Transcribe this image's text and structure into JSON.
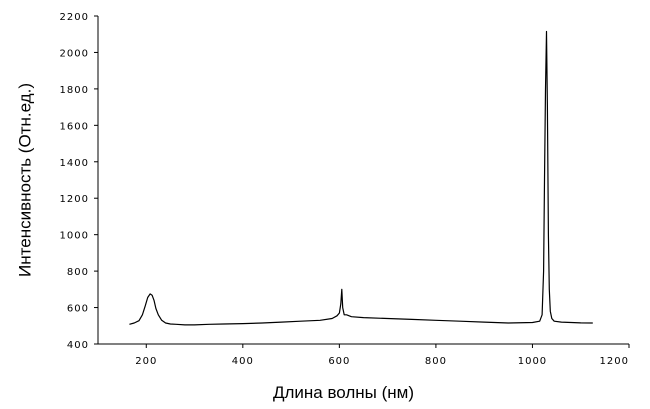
{
  "chart_data": {
    "type": "line",
    "title": "",
    "xlabel": "Длина волны (нм)",
    "ylabel": "Интенсивность (Отн.ед.)",
    "xlim": [
      100,
      1200
    ],
    "ylim": [
      400,
      2200
    ],
    "xticks": [
      200,
      400,
      600,
      800,
      1000,
      1200
    ],
    "xtick_labels": [
      "200",
      "400",
      "600",
      "800",
      "1000",
      "1200"
    ],
    "yticks": [
      400,
      600,
      800,
      1000,
      1200,
      1400,
      1600,
      1800,
      2000,
      2200
    ],
    "ytick_labels": [
      "400",
      "600",
      "800",
      "1000",
      "1200",
      "1400",
      "1600",
      "1800",
      "2000",
      "2200"
    ],
    "grid": false,
    "legend": "none",
    "series": [
      {
        "x": [
          165,
          175,
          185,
          192,
          198,
          203,
          208,
          212,
          216,
          220,
          225,
          232,
          240,
          250,
          262,
          280,
          300,
          330,
          360,
          400,
          440,
          480,
          520,
          560,
          585,
          595,
          600,
          603,
          605,
          607,
          610,
          615,
          625,
          650,
          700,
          750,
          800,
          850,
          900,
          950,
          1000,
          1015,
          1020,
          1023,
          1025,
          1027,
          1029,
          1031,
          1033,
          1035,
          1037,
          1040,
          1045,
          1060,
          1080,
          1100,
          1125
        ],
        "y": [
          508,
          515,
          528,
          560,
          610,
          655,
          675,
          668,
          640,
          595,
          560,
          530,
          515,
          510,
          508,
          505,
          505,
          508,
          510,
          512,
          515,
          520,
          525,
          530,
          540,
          555,
          570,
          620,
          700,
          600,
          560,
          560,
          550,
          545,
          540,
          535,
          530,
          525,
          520,
          515,
          518,
          525,
          560,
          800,
          1300,
          1800,
          2115,
          1700,
          1000,
          700,
          580,
          540,
          525,
          520,
          518,
          516,
          515
        ]
      }
    ]
  }
}
